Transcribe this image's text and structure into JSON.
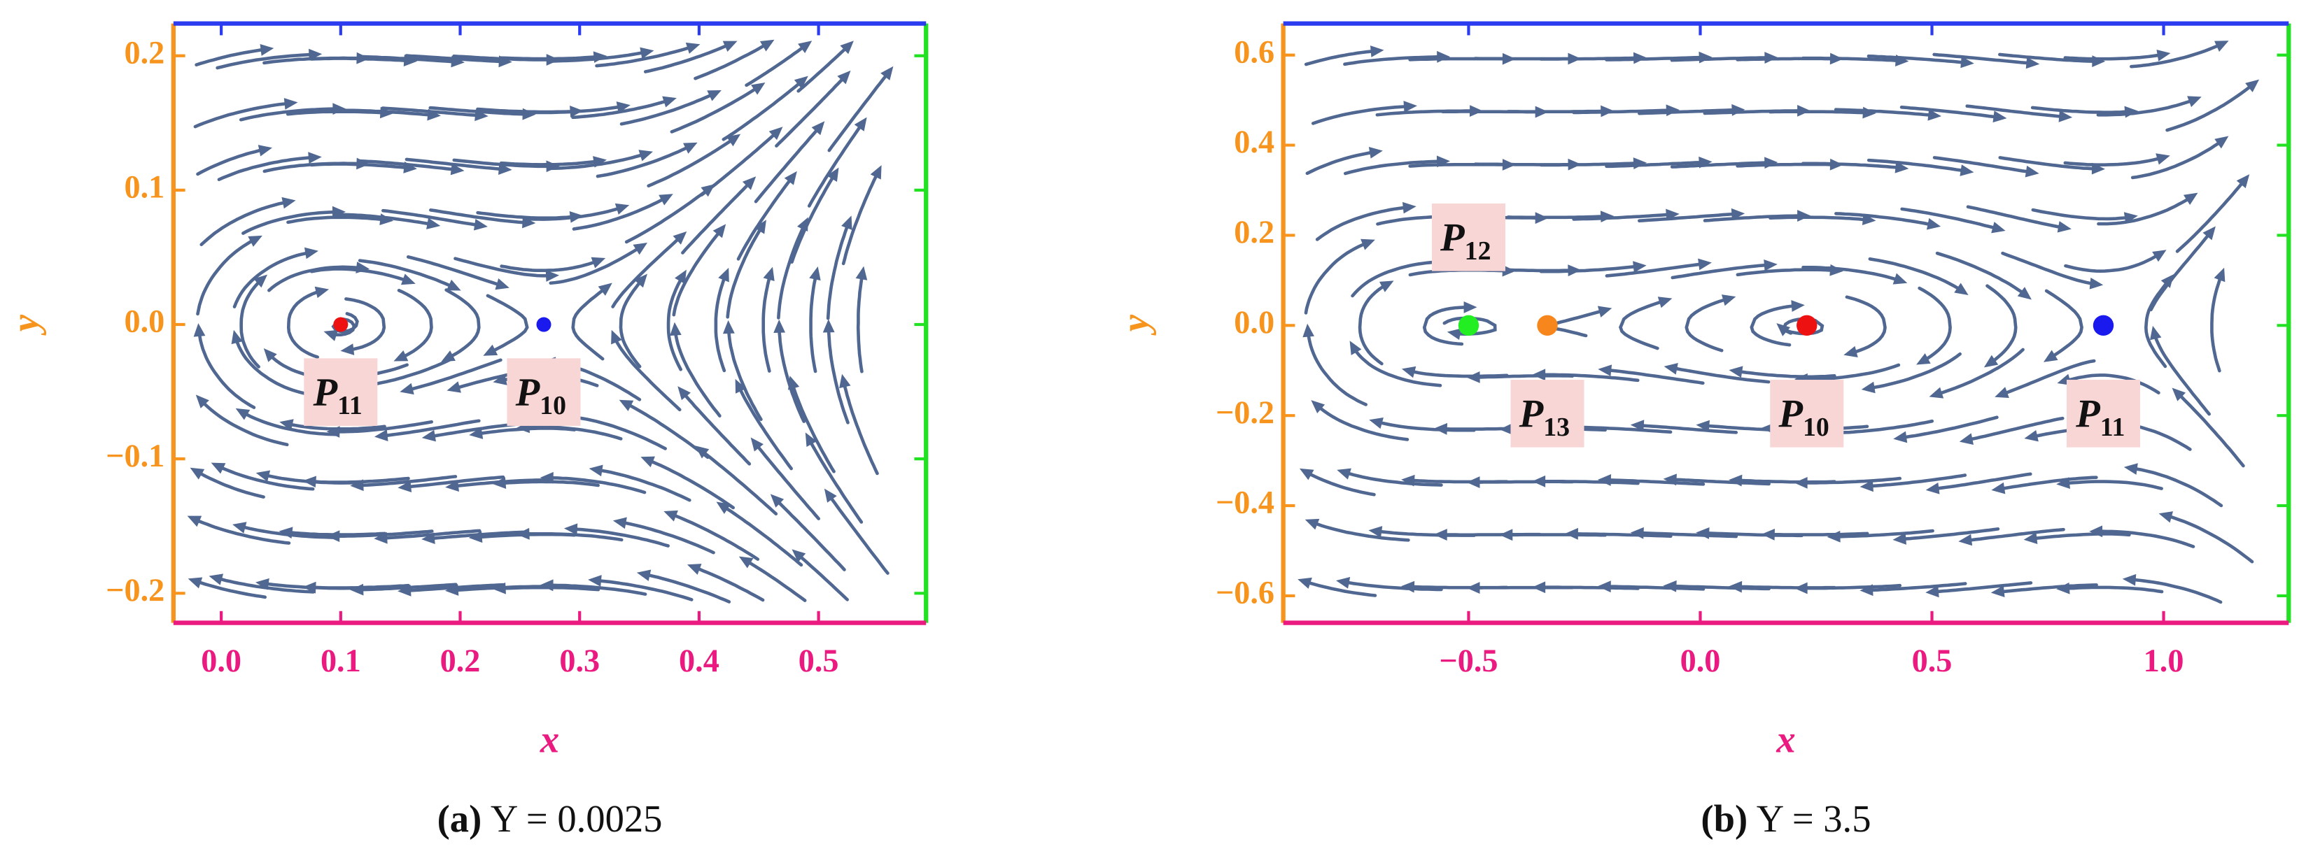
{
  "chart_data": [
    {
      "type": "stream",
      "x_label": "x",
      "y_label": "y",
      "caption_label": "(a)",
      "caption": "Y = 0.0025",
      "xlim": [
        -0.04,
        0.59
      ],
      "ylim": [
        -0.222,
        0.224
      ],
      "xticks": [
        {
          "value": 0,
          "label": "0.0"
        },
        0.1,
        0.2,
        0.3,
        0.4,
        0.5
      ],
      "yticks": [
        {
          "value": -0.2,
          "label": "−0.2"
        },
        {
          "value": -0.1,
          "label": "−0.1"
        },
        {
          "value": 0,
          "label": "0.0"
        },
        0.1,
        0.2
      ],
      "stream_color": "#4f6791",
      "frame_colors": {
        "left": "#f7941d",
        "top": "#2b3bf0",
        "right": "#22e022",
        "bottom": "#ea1a80"
      },
      "points": [
        {
          "label": "P",
          "subscript": "11",
          "x": 0.1,
          "y": 0,
          "color": "#ee1111"
        },
        {
          "label": "P",
          "subscript": "10",
          "x": 0.27,
          "y": 0,
          "color": "#1a1aee"
        }
      ]
    },
    {
      "type": "stream",
      "x_label": "x",
      "y_label": "y",
      "caption_label": "(b)",
      "caption": "Y = 3.5",
      "xlim": [
        -0.9,
        1.27
      ],
      "ylim": [
        -0.66,
        0.67
      ],
      "xticks": [
        {
          "value": -0.5,
          "label": "−0.5"
        },
        {
          "value": 0,
          "label": "0.0"
        },
        0.5,
        {
          "value": 1,
          "label": "1.0"
        }
      ],
      "yticks": [
        {
          "value": -0.6,
          "label": "−0.6"
        },
        {
          "value": -0.4,
          "label": "−0.4"
        },
        {
          "value": -0.2,
          "label": "−0.2"
        },
        {
          "value": 0,
          "label": "0.0"
        },
        0.2,
        0.4,
        0.6
      ],
      "stream_color": "#4f6791",
      "frame_colors": {
        "left": "#f7941d",
        "top": "#2b3bf0",
        "right": "#22e022",
        "bottom": "#ea1a80"
      },
      "points": [
        {
          "label": "P",
          "subscript": "12",
          "x": -0.5,
          "y": 0,
          "color": "#22ee22"
        },
        {
          "label": "P",
          "subscript": "13",
          "x": -0.33,
          "y": 0,
          "color": "#f7861d"
        },
        {
          "label": "P",
          "subscript": "10",
          "x": 0.23,
          "y": 0,
          "color": "#ee1111"
        },
        {
          "label": "P",
          "subscript": "11",
          "x": 0.87,
          "y": 0,
          "color": "#1a1aee"
        }
      ]
    }
  ]
}
